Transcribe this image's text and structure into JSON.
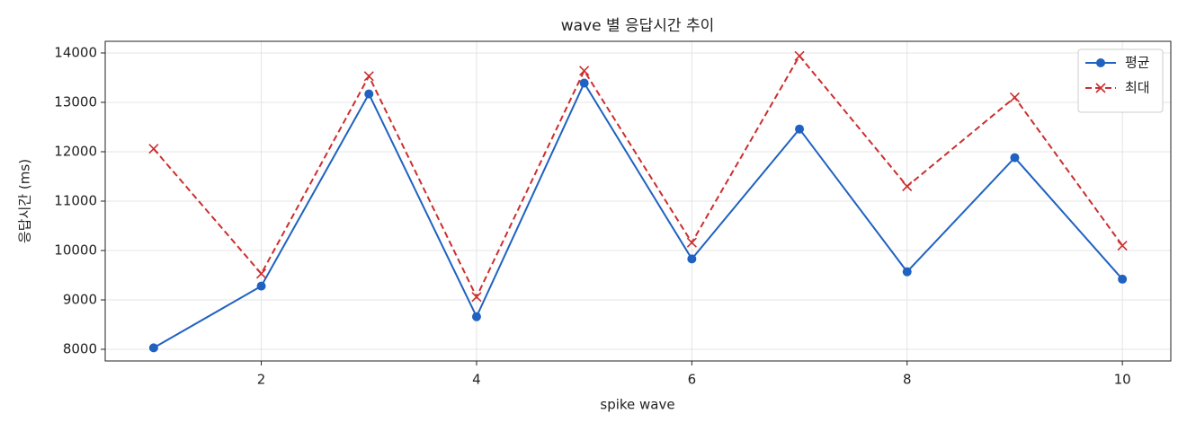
{
  "chart_data": {
    "type": "line",
    "title": "wave 별 응답시간 추이",
    "xlabel": "spike wave",
    "ylabel": "응답시간 (ms)",
    "x": [
      1,
      2,
      3,
      4,
      5,
      6,
      7,
      8,
      9,
      10
    ],
    "series": [
      {
        "name": "평균",
        "color": "#1f62c1",
        "marker": "circle",
        "dash": "solid",
        "values": [
          8030,
          9280,
          13170,
          8660,
          13390,
          9830,
          12460,
          9570,
          11880,
          9420
        ]
      },
      {
        "name": "최대",
        "color": "#cc2e2e",
        "marker": "x",
        "dash": "dashed",
        "values": [
          12060,
          9530,
          13530,
          9060,
          13640,
          10160,
          13940,
          11300,
          13100,
          10100
        ]
      }
    ],
    "xlim": [
      0.55,
      10.45
    ],
    "xticks": [
      2,
      4,
      6,
      8,
      10
    ],
    "ylim": [
      7764,
      14236
    ],
    "yticks": [
      8000,
      9000,
      10000,
      11000,
      12000,
      13000,
      14000
    ],
    "grid": true,
    "legend": "upper right"
  }
}
